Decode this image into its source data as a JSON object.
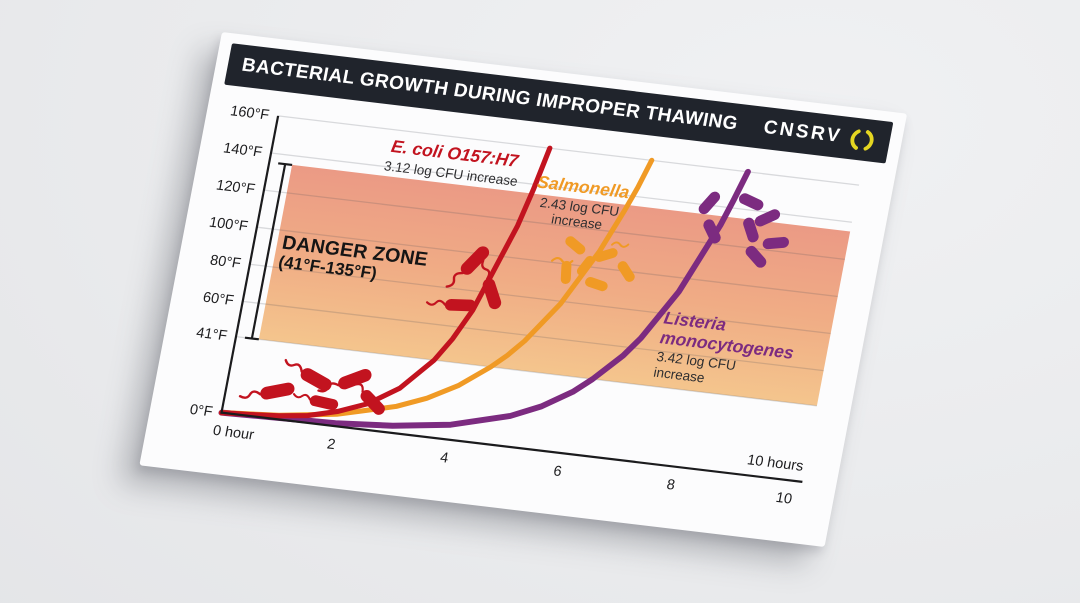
{
  "header": {
    "title": "BACTERIAL GROWTH DURING IMPROPER THAWING",
    "brand": "CNSRV"
  },
  "colors": {
    "title_bar": "#20242c",
    "logo_ring": "#e5d621",
    "axis": "#1b1b1d",
    "grid_line": "rgba(75,78,92,0.20)"
  },
  "chart_data": {
    "type": "line",
    "title": "BACTERIAL GROWTH DURING IMPROPER THAWING",
    "grid": true,
    "legend_position": "inline-annotations",
    "x_axis": {
      "unit": "hours",
      "range": [
        0,
        10
      ],
      "ticks": [
        2,
        4,
        6,
        8,
        10
      ],
      "first_label": "0 hour",
      "last_label": "10 hours"
    },
    "y_axis": {
      "unit": "°F",
      "range": [
        0,
        160
      ],
      "tick_labels": [
        "160°F",
        "140°F",
        "120°F",
        "100°F",
        "80°F",
        "60°F",
        "41°F",
        "0°F"
      ],
      "tick_values": [
        160,
        140,
        120,
        100,
        80,
        60,
        41,
        0
      ]
    },
    "danger_zone": {
      "label": "DANGER ZONE",
      "sublabel": "(41°F-135°F)",
      "from_f": 41,
      "to_f": 135,
      "gradient": [
        "#eb9a85",
        "#f0ac85",
        "#f4c58d"
      ]
    },
    "series": [
      {
        "name": "E. coli O157:H7",
        "annotation": "3.12 log CFU increase",
        "color": "#c2131f",
        "points": [
          [
            0,
            0
          ],
          [
            0.5,
            0.8
          ],
          [
            1,
            1.9
          ],
          [
            1.5,
            3.9
          ],
          [
            2,
            7.9
          ],
          [
            2.5,
            13.9
          ],
          [
            3,
            24.1
          ],
          [
            3.5,
            41
          ],
          [
            3.75,
            53.5
          ],
          [
            4,
            69.6
          ],
          [
            4.5,
            117.2
          ],
          [
            4.65,
            136.9
          ],
          [
            4.8,
            160
          ]
        ]
      },
      {
        "name": "Salmonella",
        "annotation": "2.43 log CFU increase",
        "color": "#f09a25",
        "points": [
          [
            0,
            0
          ],
          [
            1,
            2.2
          ],
          [
            2,
            6.4
          ],
          [
            3,
            14.3
          ],
          [
            3.5,
            20.5
          ],
          [
            4,
            29.1
          ],
          [
            4.5,
            41
          ],
          [
            4.75,
            48.2
          ],
          [
            5,
            56.8
          ],
          [
            5.5,
            78.8
          ],
          [
            6,
            108.9
          ],
          [
            6.3,
            132.1
          ],
          [
            6.45,
            145
          ],
          [
            6.6,
            160
          ]
        ]
      },
      {
        "name": "Listeria monocytogenes",
        "annotation": "3.42 log CFU increase",
        "color": "#7c2b80",
        "points": [
          [
            0,
            0
          ],
          [
            2,
            1.6
          ],
          [
            3,
            3.8
          ],
          [
            4,
            8
          ],
          [
            5,
            16.4
          ],
          [
            5.5,
            23.3
          ],
          [
            6,
            33
          ],
          [
            6.3,
            41
          ],
          [
            6.75,
            55.3
          ],
          [
            7,
            65.6
          ],
          [
            7.5,
            92.4
          ],
          [
            8,
            130.1
          ],
          [
            8.15,
            144.4
          ],
          [
            8.3,
            160
          ]
        ]
      }
    ]
  }
}
